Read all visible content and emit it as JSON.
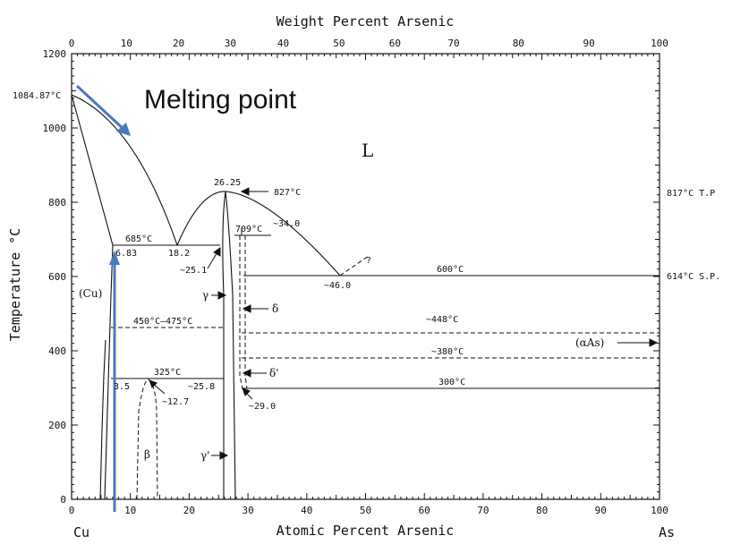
{
  "axes": {
    "top_title": "Weight Percent Arsenic",
    "bottom_title": "Atomic Percent Arsenic",
    "y_title": "Temperature °C",
    "x_ticks": [
      "0",
      "10",
      "20",
      "30",
      "40",
      "50",
      "60",
      "70",
      "80",
      "90",
      "100"
    ],
    "top_ticks": [
      "0",
      "10",
      "20",
      "30",
      "40",
      "50",
      "60",
      "70",
      "80",
      "90",
      "100"
    ],
    "y_ticks": [
      "0",
      "200",
      "400",
      "600",
      "800",
      "1000",
      "1200"
    ],
    "left_element": "Cu",
    "right_element": "As"
  },
  "annotation": {
    "melting_point": "Melting point"
  },
  "labels": {
    "cu_melt": "1084.87°C",
    "L": "L",
    "cu_phase": "(Cu)",
    "as_phase": "(αAs)",
    "t_827": "827°C",
    "c_2625": "26.25",
    "t_685": "685°C",
    "c_683": "6.83",
    "c_182": "18.2",
    "c_251": "~25.1",
    "t_709": "709°C",
    "c_340": "~34.0",
    "c_460": "~46.0",
    "q": "?",
    "t_600": "600°C",
    "r_817": "817°C  T.P",
    "r_614": "614°C  S.P.",
    "t_450": "450°C–475°C",
    "t_448": "~448°C",
    "t_380": "~380°C",
    "t_325": "325°C",
    "c_35": "3.5",
    "c_127": "~12.7",
    "c_258": "~25.8",
    "c_290": "~29.0",
    "t_300": "300°C",
    "gamma": "γ",
    "delta": "δ",
    "delta_p": "δ'",
    "beta": "β",
    "gamma_p": "γ'"
  }
}
